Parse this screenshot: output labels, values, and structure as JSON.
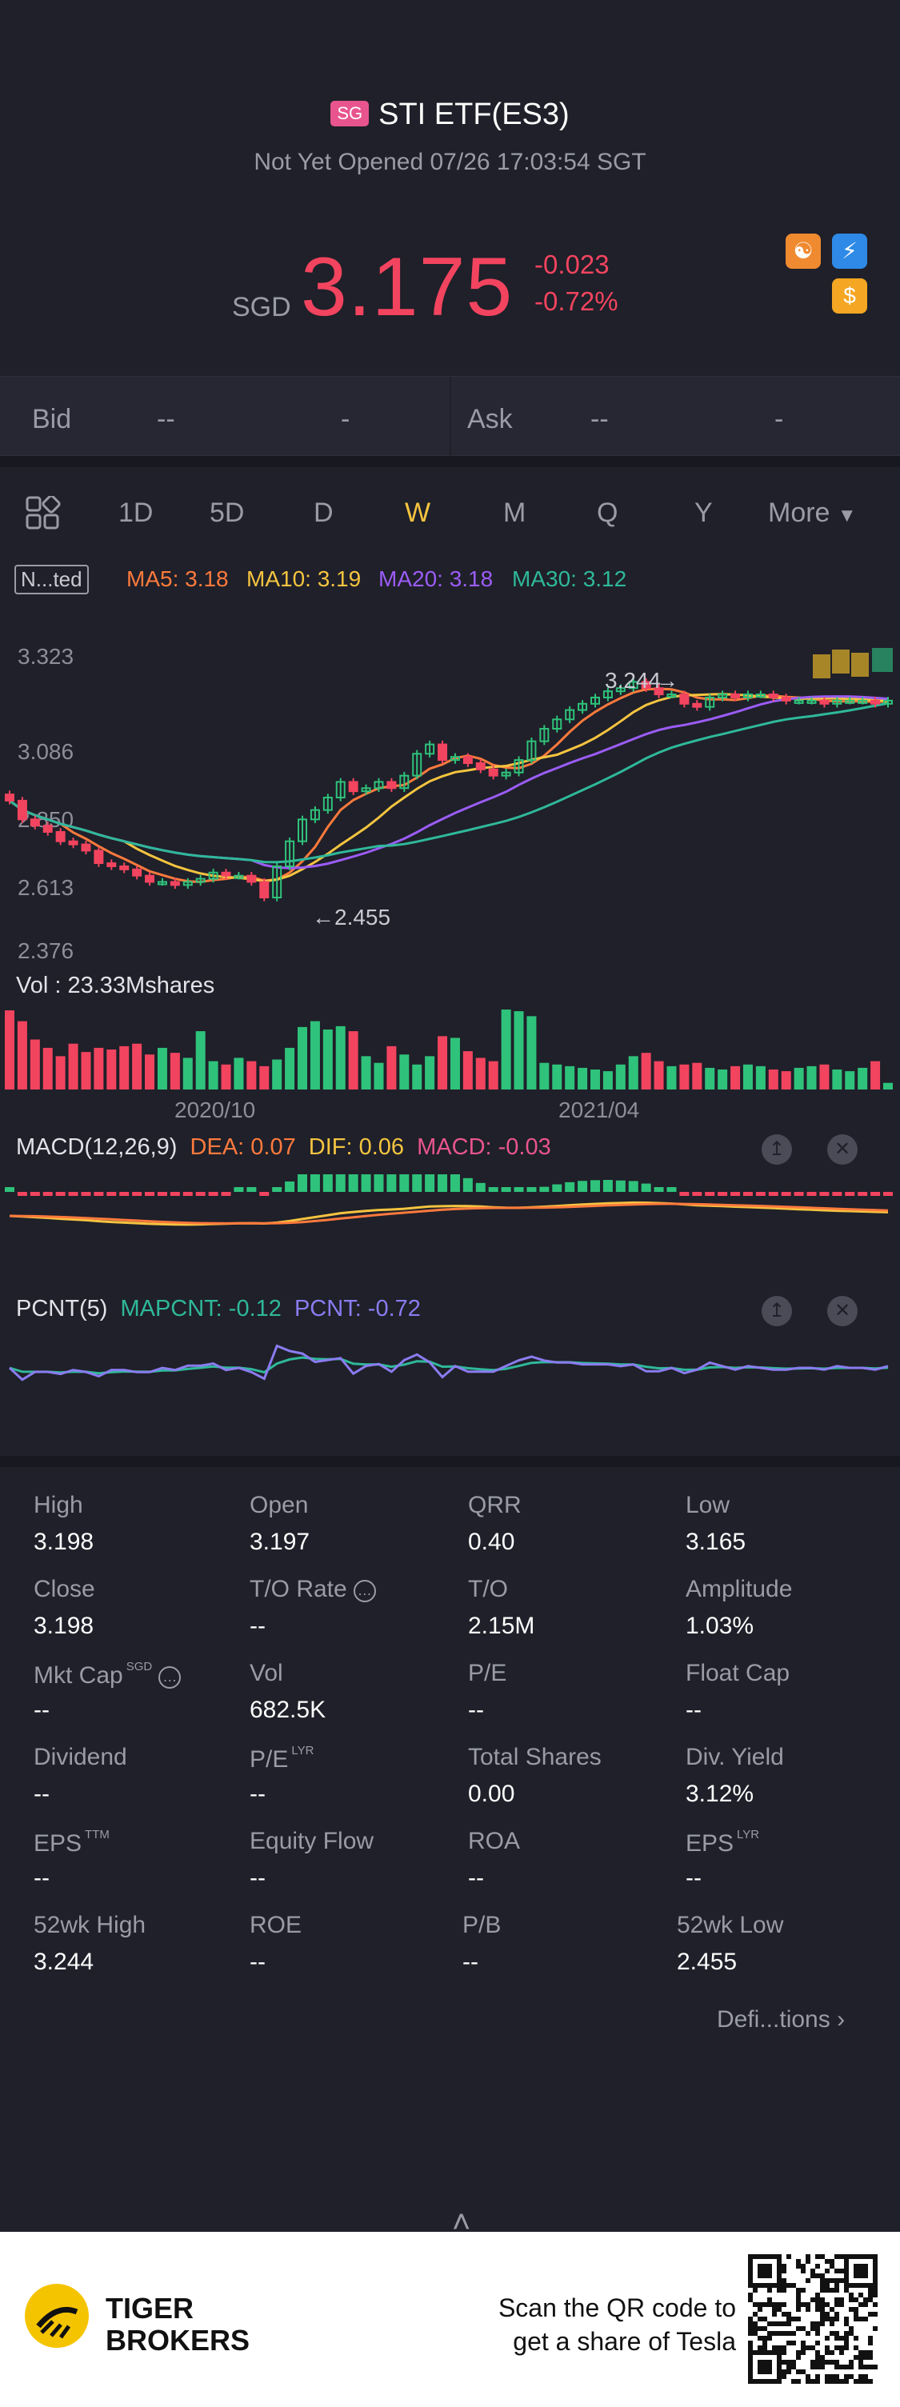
{
  "header": {
    "badge": "SG",
    "title": "STI ETF(ES3)",
    "status": "Not Yet Opened 07/26 17:03:54 SGT",
    "currency": "SGD",
    "price": "3.175",
    "change": "-0.023",
    "change_pct": "-0.72%",
    "colors": {
      "down": "#f2445f",
      "up": "#2fc27b",
      "accent": "#f5c440"
    }
  },
  "bidask": {
    "bid_label": "Bid",
    "bid_price": "--",
    "bid_size": "-",
    "ask_label": "Ask",
    "ask_price": "--",
    "ask_size": "-"
  },
  "tabs": {
    "items": [
      "1D",
      "5D",
      "D",
      "W",
      "M",
      "Q",
      "Y"
    ],
    "active": "W",
    "more": "More"
  },
  "legend": {
    "badge": "N...ted",
    "ma5": "MA5: 3.18",
    "ma10": "MA10: 3.19",
    "ma20": "MA20: 3.18",
    "ma30": "MA30: 3.12"
  },
  "chart_data": [
    {
      "type": "candlestick",
      "title": "",
      "y_ticks": [
        "3.323",
        "3.086",
        "2.850",
        "2.613",
        "2.376"
      ],
      "ylim": [
        2.376,
        3.323
      ],
      "annotations": {
        "high": "3.244",
        "low": "2.455"
      },
      "series": [
        {
          "name": "MA5",
          "color": "#ff7a3d"
        },
        {
          "name": "MA10",
          "color": "#f5c440"
        },
        {
          "name": "MA20",
          "color": "#9b5cf6"
        },
        {
          "name": "MA30",
          "color": "#2fb89a"
        }
      ],
      "closes": [
        2.86,
        2.8,
        2.78,
        2.76,
        2.73,
        2.72,
        2.7,
        2.66,
        2.65,
        2.64,
        2.62,
        2.6,
        2.6,
        2.59,
        2.6,
        2.61,
        2.63,
        2.62,
        2.62,
        2.6,
        2.55,
        2.65,
        2.73,
        2.8,
        2.83,
        2.87,
        2.92,
        2.89,
        2.9,
        2.92,
        2.9,
        2.94,
        3.01,
        3.04,
        2.99,
        3.0,
        2.98,
        2.96,
        2.94,
        2.95,
        2.99,
        3.05,
        3.09,
        3.12,
        3.15,
        3.17,
        3.19,
        3.21,
        3.22,
        3.24,
        3.22,
        3.2,
        3.2,
        3.17,
        3.16,
        3.19,
        3.2,
        3.19,
        3.2,
        3.2,
        3.19,
        3.18,
        3.18,
        3.18,
        3.17,
        3.18,
        3.18,
        3.18,
        3.17,
        3.18
      ]
    },
    {
      "type": "bar",
      "title": "Vol  : 23.33Mshares",
      "x_ticks": [
        "2020/10",
        "2021/04"
      ],
      "values": [
        95,
        82,
        60,
        50,
        40,
        55,
        45,
        50,
        48,
        52,
        55,
        42,
        50,
        44,
        38,
        70,
        34,
        30,
        38,
        34,
        28,
        36,
        50,
        75,
        82,
        72,
        76,
        70,
        40,
        32,
        52,
        42,
        30,
        40,
        64,
        62,
        46,
        38,
        34,
        96,
        94,
        88,
        32,
        30,
        28,
        26,
        24,
        22,
        30,
        40,
        44,
        34,
        28,
        30,
        32,
        26,
        24,
        28,
        30,
        28,
        24,
        22,
        26,
        28,
        30,
        24,
        22,
        26,
        34,
        8
      ]
    },
    {
      "type": "bar",
      "title": "MACD(12,26,9)",
      "legend": {
        "dea": "DEA: 0.07",
        "dif": "DIF: 0.06",
        "macd": "MACD: -0.03"
      }
    },
    {
      "type": "line",
      "title": "PCNT(5)",
      "legend": {
        "mapcnt": "MAPCNT: -0.12",
        "pcnt": "PCNT: -0.72"
      }
    }
  ],
  "stats": [
    {
      "label": "High",
      "value": "3.198"
    },
    {
      "label": "Open",
      "value": "3.197"
    },
    {
      "label": "QRR",
      "value": "0.40"
    },
    {
      "label": "Low",
      "value": "3.165"
    },
    {
      "label": "Close",
      "value": "3.198"
    },
    {
      "label": "T/O Rate",
      "value": "--"
    },
    {
      "label": "T/O",
      "value": "2.15M"
    },
    {
      "label": "Amplitude",
      "value": "1.03%"
    },
    {
      "label": "Mkt Cap",
      "value": "--"
    },
    {
      "label": "Vol",
      "value": "682.5K"
    },
    {
      "label": "P/E",
      "value": "--"
    },
    {
      "label": "Float Cap",
      "value": "--"
    },
    {
      "label": "Dividend",
      "value": "--"
    },
    {
      "label": "P/E",
      "value": "--"
    },
    {
      "label": "Total Shares",
      "value": "0.00"
    },
    {
      "label": "Div. Yield",
      "value": "3.12%"
    },
    {
      "label": "EPS",
      "value": "--"
    },
    {
      "label": "Equity Flow",
      "value": "--"
    },
    {
      "label": "ROA",
      "value": "--"
    },
    {
      "label": "EPS",
      "value": "--"
    },
    {
      "label": "52wk High",
      "value": "3.244"
    },
    {
      "label": "ROE",
      "value": "--"
    },
    {
      "label": "P/B",
      "value": "--"
    },
    {
      "label": "52wk Low",
      "value": "2.455"
    }
  ],
  "superscripts": {
    "mkt_cap": "SGD",
    "pe_lyr": "LYR",
    "eps_ttm": "TTM",
    "eps_lyr": "LYR"
  },
  "definitions": "Defi...tions",
  "footer": {
    "brand_line1": "TIGER",
    "brand_line2": "BROKERS",
    "scan_line1": "Scan the QR code to",
    "scan_line2": "get a share of Tesla"
  }
}
